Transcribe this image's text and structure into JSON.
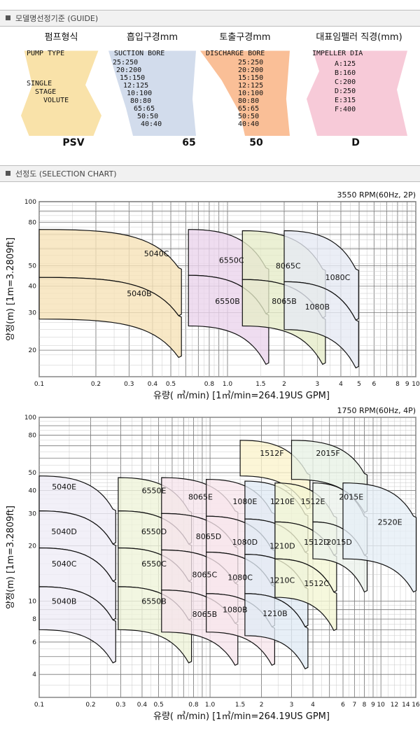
{
  "guide_header": "모델명선정기준 (GUIDE)",
  "selection_header": "선정도 (SELECTION CHART)",
  "guide": {
    "columns": [
      {
        "key": "pump",
        "title": "펌프형식",
        "subtitle": "PUMP TYPE",
        "lines": [
          "SINGLE",
          "STAGE",
          "VOLUTE"
        ],
        "code": "PSV",
        "color": "#f8dfa0"
      },
      {
        "key": "suction",
        "title": "흡입구경mm",
        "subtitle": "SUCTION BORE",
        "lines": [
          "25:250",
          "20:200",
          "15:150",
          "12:125",
          "10:100",
          "80:80",
          "65:65",
          "50:50",
          "40:40"
        ],
        "code": "65",
        "color": "#cdd8ea"
      },
      {
        "key": "discharge",
        "title": "토출구경mm",
        "subtitle": "DISCHARGE BORE",
        "lines": [
          "25:250",
          "20:200",
          "15:150",
          "12:125",
          "10:100",
          "80:80",
          "65:65",
          "50:50",
          "40:40"
        ],
        "code": "50",
        "color": "#f9b88c"
      },
      {
        "key": "impeller",
        "title": "대표임펠러 직경(mm)",
        "subtitle": "IMPELLER DIA",
        "lines": [
          "A:125",
          "B:160",
          "C:200",
          "D:250",
          "E:315",
          "F:400"
        ],
        "code": "D",
        "color": "#f6c4d4"
      }
    ]
  },
  "chart_data": [
    {
      "type": "area",
      "title": "3550 RPM(60Hz, 2P)",
      "xlabel": "유량( ㎥/min)    [1㎥/min=264.19US GPM]",
      "ylabel": "양정(m) [1m=3.2809ft]",
      "xscale": "log",
      "yscale": "log",
      "xlim": [
        0.1,
        10
      ],
      "ylim": [
        15,
        100
      ],
      "xticks": [
        {
          "v": 0.1,
          "l": "0.1"
        },
        {
          "v": 0.2,
          "l": "0.2"
        },
        {
          "v": 0.3,
          "l": "0.3"
        },
        {
          "v": 0.4,
          "l": "0.4"
        },
        {
          "v": 0.5,
          "l": "0.5"
        },
        {
          "v": 0.8,
          "l": "0.8"
        },
        {
          "v": 1,
          "l": "1.0"
        },
        {
          "v": 1.5,
          "l": "1.5"
        },
        {
          "v": 2,
          "l": "2"
        },
        {
          "v": 3,
          "l": "3"
        },
        {
          "v": 4,
          "l": "4"
        },
        {
          "v": 5,
          "l": "5"
        },
        {
          "v": 6,
          "l": "6"
        },
        {
          "v": 8,
          "l": "8"
        },
        {
          "v": 9,
          "l": "9"
        },
        {
          "v": 10,
          "l": "10"
        }
      ],
      "yticks": [
        {
          "v": 20,
          "l": "20"
        },
        {
          "v": 30,
          "l": "30"
        },
        {
          "v": 40,
          "l": "40"
        },
        {
          "v": 50,
          "l": "50"
        },
        {
          "v": 80,
          "l": "80"
        },
        {
          "v": 100,
          "l": "100"
        }
      ],
      "series": [
        {
          "name": "5040C",
          "x1": 0.1,
          "x2": 0.55,
          "h1": 74,
          "h2": 44,
          "color": "#f6e2b6",
          "label_at": [
            0.42,
            57
          ]
        },
        {
          "name": "5040B",
          "x1": 0.1,
          "x2": 0.55,
          "h1": 44,
          "h2": 28,
          "color": "#f6e2b6",
          "label_at": [
            0.34,
            37
          ]
        },
        {
          "name": "6550C",
          "x1": 0.62,
          "x2": 1.6,
          "h1": 74,
          "h2": 45,
          "color": "#ead4ec",
          "label_at": [
            1.05,
            53
          ]
        },
        {
          "name": "6550B",
          "x1": 0.62,
          "x2": 1.6,
          "h1": 45,
          "h2": 26,
          "color": "#ead4ec",
          "label_at": [
            1.0,
            34
          ]
        },
        {
          "name": "8065C",
          "x1": 1.2,
          "x2": 3.2,
          "h1": 73,
          "h2": 43,
          "color": "#e5ecc8",
          "label_at": [
            2.1,
            50
          ]
        },
        {
          "name": "8065B",
          "x1": 1.2,
          "x2": 3.2,
          "h1": 43,
          "h2": 26,
          "color": "#e5ecc8",
          "label_at": [
            2.0,
            34
          ]
        },
        {
          "name": "1080C",
          "x1": 2.0,
          "x2": 4.8,
          "h1": 73,
          "h2": 42,
          "color": "#e5e9f3",
          "label_at": [
            3.85,
            44
          ]
        },
        {
          "name": "1080B",
          "x1": 2.0,
          "x2": 4.8,
          "h1": 42,
          "h2": 25,
          "color": "#e5e9f3",
          "label_at": [
            3.0,
            32
          ]
        }
      ]
    },
    {
      "type": "area",
      "title": "1750 RPM(60Hz, 4P)",
      "xlabel": "유량( ㎥/min)    [1㎥/min=264.19US GPM]",
      "ylabel": "양정(m) [1m=3.2809ft]",
      "xscale": "log",
      "yscale": "log",
      "xlim": [
        0.1,
        16
      ],
      "ylim": [
        3,
        100
      ],
      "xticks": [
        {
          "v": 0.1,
          "l": "0.1"
        },
        {
          "v": 0.2,
          "l": "0.2"
        },
        {
          "v": 0.3,
          "l": "0.3"
        },
        {
          "v": 0.4,
          "l": "0.4"
        },
        {
          "v": 0.5,
          "l": "0.5"
        },
        {
          "v": 0.8,
          "l": "0.8"
        },
        {
          "v": 1,
          "l": "1.0"
        },
        {
          "v": 1.5,
          "l": "1.5"
        },
        {
          "v": 2,
          "l": "2"
        },
        {
          "v": 3,
          "l": "3"
        },
        {
          "v": 4,
          "l": "4"
        },
        {
          "v": 6,
          "l": "6"
        },
        {
          "v": 7,
          "l": "7"
        },
        {
          "v": 8,
          "l": "8"
        },
        {
          "v": 9,
          "l": "9"
        },
        {
          "v": 10,
          "l": "10"
        },
        {
          "v": 12,
          "l": "12"
        },
        {
          "v": 14,
          "l": "14"
        },
        {
          "v": 16,
          "l": "16"
        }
      ],
      "yticks": [
        {
          "v": 4,
          "l": "4"
        },
        {
          "v": 6,
          "l": "6"
        },
        {
          "v": 8,
          "l": "8"
        },
        {
          "v": 10,
          "l": "10"
        },
        {
          "v": 20,
          "l": "20"
        },
        {
          "v": 30,
          "l": "30"
        },
        {
          "v": 40,
          "l": "40"
        },
        {
          "v": 50,
          "l": "50"
        },
        {
          "v": 80,
          "l": "80"
        },
        {
          "v": 100,
          "l": "100"
        }
      ],
      "series": [
        {
          "name": "5040E",
          "x1": 0.1,
          "x2": 0.27,
          "h1": 48,
          "h2": 31,
          "color": "#eeecf6",
          "label_at": [
            0.14,
            42
          ]
        },
        {
          "name": "5040D",
          "x1": 0.1,
          "x2": 0.27,
          "h1": 31,
          "h2": 19.5,
          "color": "#eeecf6",
          "label_at": [
            0.14,
            24
          ]
        },
        {
          "name": "5040C",
          "x1": 0.1,
          "x2": 0.27,
          "h1": 19.5,
          "h2": 12,
          "color": "#eeecf6",
          "label_at": [
            0.14,
            16
          ]
        },
        {
          "name": "5040B",
          "x1": 0.1,
          "x2": 0.27,
          "h1": 12,
          "h2": 7,
          "color": "#eeecf6",
          "label_at": [
            0.14,
            10
          ]
        },
        {
          "name": "6550E",
          "x1": 0.29,
          "x2": 0.75,
          "h1": 47,
          "h2": 31,
          "color": "#eef3d8",
          "label_at": [
            0.47,
            40
          ]
        },
        {
          "name": "6550D",
          "x1": 0.29,
          "x2": 0.75,
          "h1": 31,
          "h2": 19.5,
          "color": "#eef3d8",
          "label_at": [
            0.47,
            24
          ]
        },
        {
          "name": "6550C",
          "x1": 0.29,
          "x2": 0.75,
          "h1": 19.5,
          "h2": 12,
          "color": "#eef3d8",
          "label_at": [
            0.47,
            16
          ]
        },
        {
          "name": "6550B",
          "x1": 0.29,
          "x2": 0.75,
          "h1": 12,
          "h2": 7,
          "color": "#eef3d8",
          "label_at": [
            0.47,
            10
          ]
        },
        {
          "name": "8065E",
          "x1": 0.52,
          "x2": 1.4,
          "h1": 47,
          "h2": 30,
          "color": "#f6e4ec",
          "label_at": [
            0.88,
            37
          ]
        },
        {
          "name": "8065D",
          "x1": 0.52,
          "x2": 1.4,
          "h1": 30,
          "h2": 19,
          "color": "#f6e4ec",
          "label_at": [
            0.98,
            22.5
          ]
        },
        {
          "name": "8065C",
          "x1": 0.52,
          "x2": 1.4,
          "h1": 19,
          "h2": 11.5,
          "color": "#f6e4ec",
          "label_at": [
            0.93,
            14
          ]
        },
        {
          "name": "8065B",
          "x1": 0.52,
          "x2": 1.4,
          "h1": 11.5,
          "h2": 6.8,
          "color": "#f6e4ec",
          "label_at": [
            0.93,
            8.5
          ]
        },
        {
          "name": "1080E",
          "x1": 0.95,
          "x2": 2.3,
          "h1": 46,
          "h2": 29,
          "color": "#f7e6ec",
          "label_at": [
            1.6,
            35
          ]
        },
        {
          "name": "1080D",
          "x1": 0.95,
          "x2": 2.3,
          "h1": 29,
          "h2": 18.5,
          "color": "#f7e6ec",
          "label_at": [
            1.6,
            21
          ]
        },
        {
          "name": "1080C",
          "x1": 0.95,
          "x2": 2.3,
          "h1": 18.5,
          "h2": 11,
          "color": "#f7e6ec",
          "label_at": [
            1.5,
            13.5
          ]
        },
        {
          "name": "1080B",
          "x1": 0.95,
          "x2": 2.3,
          "h1": 11,
          "h2": 6.8,
          "color": "#f7e6ec",
          "label_at": [
            1.4,
            9
          ]
        },
        {
          "name": "1210E",
          "x1": 1.6,
          "x2": 3.6,
          "h1": 45,
          "h2": 28,
          "color": "#e0ebf5",
          "label_at": [
            2.65,
            35
          ]
        },
        {
          "name": "1210D",
          "x1": 1.6,
          "x2": 3.6,
          "h1": 28,
          "h2": 18,
          "color": "#e0ebf5",
          "label_at": [
            2.65,
            20
          ]
        },
        {
          "name": "1210C",
          "x1": 1.6,
          "x2": 3.6,
          "h1": 18,
          "h2": 11,
          "color": "#e0ebf5",
          "label_at": [
            2.65,
            13
          ]
        },
        {
          "name": "1210B",
          "x1": 1.6,
          "x2": 3.6,
          "h1": 11,
          "h2": 6.5,
          "color": "#e0ebf5",
          "label_at": [
            2.4,
            8.6
          ]
        },
        {
          "name": "1512F",
          "x1": 1.5,
          "x2": 3.7,
          "h1": 75,
          "h2": 48,
          "color": "#fbf3cc",
          "label_at": [
            2.3,
            64
          ]
        },
        {
          "name": "1512E",
          "x1": 2.4,
          "x2": 5.3,
          "h1": 44,
          "h2": 27,
          "color": "#f3f6d4",
          "label_at": [
            4.0,
            35
          ]
        },
        {
          "name": "1512D",
          "x1": 2.4,
          "x2": 5.3,
          "h1": 27,
          "h2": 17,
          "color": "#f3f6d4",
          "label_at": [
            4.2,
            21
          ]
        },
        {
          "name": "1512C",
          "x1": 2.4,
          "x2": 5.3,
          "h1": 17,
          "h2": 10.5,
          "color": "#f3f6d4",
          "label_at": [
            4.2,
            12.5
          ]
        },
        {
          "name": "2015F",
          "x1": 3.0,
          "x2": 8.0,
          "h1": 75,
          "h2": 46,
          "color": "#e8f2e6",
          "label_at": [
            4.9,
            64
          ]
        },
        {
          "name": "2015E",
          "x1": 4.0,
          "x2": 8.0,
          "h1": 44,
          "h2": 27,
          "color": "#ecf2ec",
          "label_at": [
            6.7,
            37
          ]
        },
        {
          "name": "2015D",
          "x1": 4.0,
          "x2": 8.0,
          "h1": 27,
          "h2": 17,
          "color": "#ecf2ec",
          "label_at": [
            5.7,
            21
          ]
        },
        {
          "name": "2520E",
          "x1": 6.0,
          "x2": 15.5,
          "h1": 44,
          "h2": 17,
          "color": "#e6eef6",
          "label_at": [
            11.3,
            27
          ]
        }
      ]
    }
  ]
}
